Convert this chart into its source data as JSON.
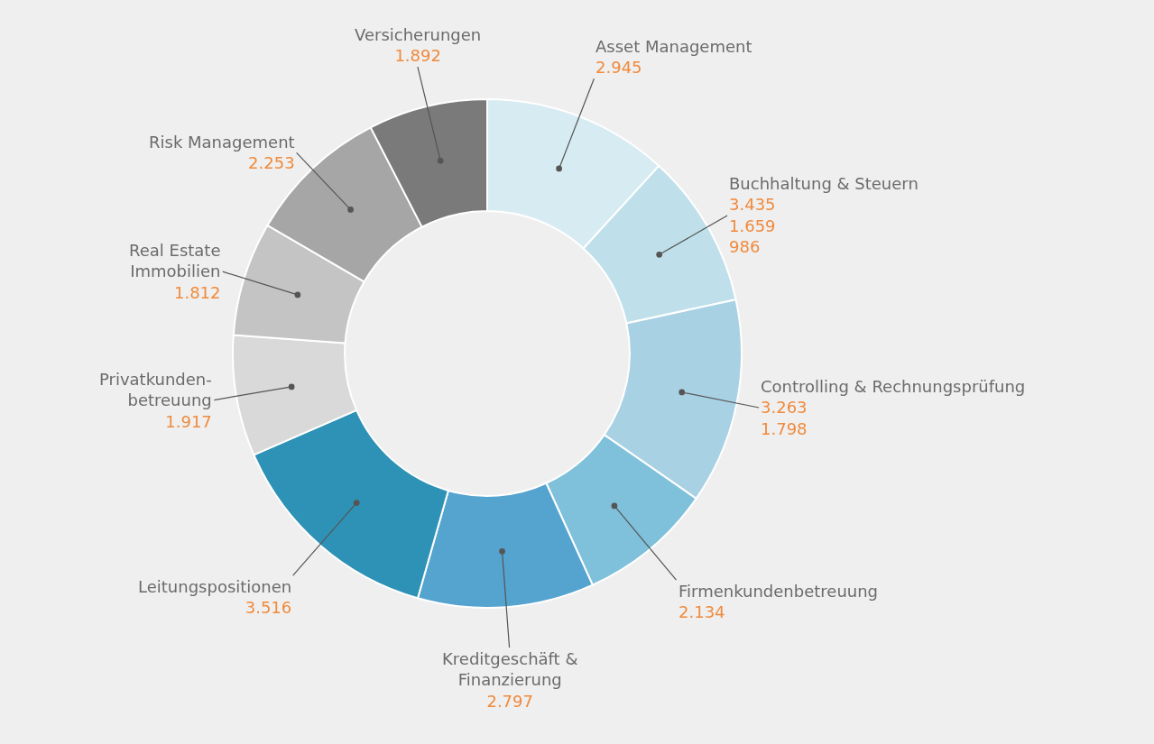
{
  "chart_data": {
    "type": "donut",
    "categories": [
      "Asset Management",
      "Buchhaltung & Steuern",
      "Controlling & Rechnungsprüfung",
      "Firmenkundenbetreuung",
      "Kreditgeschäft &\nFinanzierung",
      "Leitungspositionen",
      "Privatkunden-\nbetreuung",
      "Real Estate\nImmobilien",
      "Risk Management",
      "Versicherungen"
    ],
    "values": [
      2945,
      2450,
      3263,
      2134,
      2797,
      3516,
      1917,
      1812,
      2253,
      1892
    ],
    "value_labels": [
      "2.945",
      null,
      "3.263",
      "2.134",
      "2.797",
      "3.516",
      "1.917",
      "1.812",
      "2.253",
      "1.892"
    ],
    "colors": [
      "#d7ebf3",
      "#bfe0ea",
      "#a9d1e4",
      "#7fc0da",
      "#55a3cf",
      "#2e92b6",
      "#d9d9d9",
      "#c4c4c4",
      "#a6a6a6",
      "#7a7a7a"
    ],
    "annotations": [
      {
        "text": "3.435\n1.659\n986",
        "x": "Buchhaltung & Steuern"
      },
      {
        "text": "1.798",
        "x": "Controlling & Rechnungsprüfung"
      }
    ],
    "legend": false
  }
}
